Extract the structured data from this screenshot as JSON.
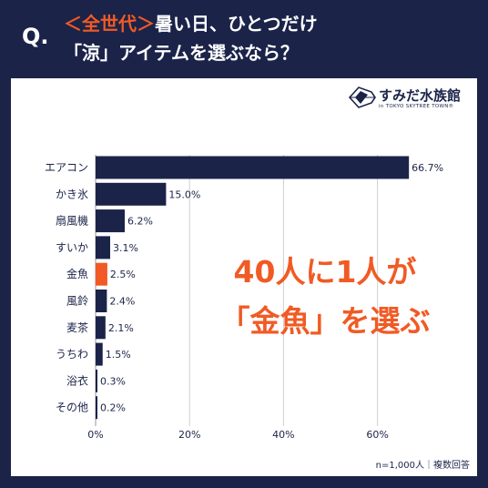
{
  "header": {
    "q_mark": "Q.",
    "title_accent": "＜全世代＞",
    "title_line1": "暑い日、ひとつだけ",
    "title_line2": "「涼」アイテムを選ぶなら？"
  },
  "logo": {
    "name": "すみだ水族館",
    "sub": "in TOKYO SKYTREE TOWN®"
  },
  "headline": {
    "line1": "40人に1人が",
    "line2": "「金魚」を選ぶ"
  },
  "note": "n=1,000人｜複数回答",
  "colors": {
    "navy": "#1b2349",
    "accent": "#f15a24",
    "grid": "#d0d0d0"
  },
  "chart_data": {
    "type": "bar",
    "orientation": "horizontal",
    "categories": [
      "エアコン",
      "かき氷",
      "扇風機",
      "すいか",
      "金魚",
      "風鈴",
      "麦茶",
      "うちわ",
      "浴衣",
      "その他"
    ],
    "values": [
      66.7,
      15.0,
      6.2,
      3.1,
      2.5,
      2.4,
      2.1,
      1.5,
      0.3,
      0.2
    ],
    "value_labels": [
      "66.7%",
      "15.0%",
      "6.2%",
      "3.1%",
      "2.5%",
      "2.4%",
      "2.1%",
      "1.5%",
      "0.3%",
      "0.2%"
    ],
    "highlight": "金魚",
    "xlim": [
      0,
      70
    ],
    "xticks": [
      0,
      20,
      40,
      60
    ],
    "xtick_labels": [
      "0%",
      "20%",
      "40%",
      "60%"
    ],
    "grid": true,
    "legend": "none"
  }
}
